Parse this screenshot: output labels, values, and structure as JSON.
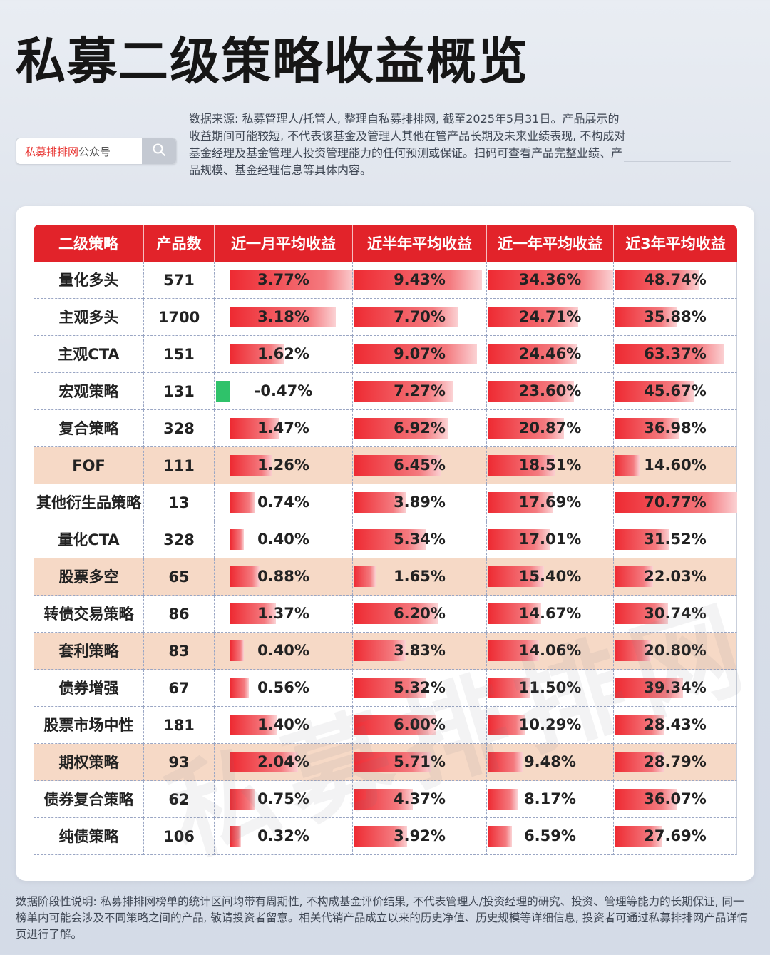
{
  "title": "私募二级策略收益概览",
  "search": {
    "brand": "私募排排网",
    "suffix": "公众号",
    "icon": "search-icon"
  },
  "source_note": "数据来源: 私募管理人/托管人, 整理自私募排排网, 截至2025年5月31日。产品展示的收益期间可能较短, 不代表该基金及管理人其他在管产品长期及未来业绩表现, 不构成对基金经理及基金管理人投资管理能力的任何预测或保证。扫码可查看产品完整业绩、产品规模、基金经理信息等具体内容。",
  "watermark": "私募排排网",
  "footnote": "数据阶段性说明: 私募排排网榜单的统计区间均带有周期性, 不构成基金评价结果, 不代表管理人/投资经理的研究、投资、管理等能力的长期保证, 同一榜单内可能会涉及不同策略之间的产品, 敬请投资者留意。相关代销产品成立以来的历史净值、历史规模等详细信息, 投资者可通过私募排排网产品详情页进行了解。",
  "colors": {
    "header": "#e2232a",
    "bar": "#ee2a32",
    "negative_bar": "#2fc26a",
    "highlight_row": "#f6d9c6"
  },
  "chart_data": {
    "type": "table",
    "columns": [
      "二级策略",
      "产品数",
      "近一月平均收益",
      "近半年平均收益",
      "近一年平均收益",
      "近3年平均收益"
    ],
    "bar_max": [
      3.77,
      9.43,
      34.36,
      70.77
    ],
    "rows": [
      {
        "name": "量化多头",
        "count": "571",
        "highlight": false,
        "values": [
          3.77,
          9.43,
          34.36,
          48.74
        ],
        "labels": [
          "3.77%",
          "9.43%",
          "34.36%",
          "48.74%"
        ]
      },
      {
        "name": "主观多头",
        "count": "1700",
        "highlight": false,
        "values": [
          3.18,
          7.7,
          24.71,
          35.88
        ],
        "labels": [
          "3.18%",
          "7.70%",
          "24.71%",
          "35.88%"
        ]
      },
      {
        "name": "主观CTA",
        "count": "151",
        "highlight": false,
        "values": [
          1.62,
          9.07,
          24.46,
          63.37
        ],
        "labels": [
          "1.62%",
          "9.07%",
          "24.46%",
          "63.37%"
        ]
      },
      {
        "name": "宏观策略",
        "count": "131",
        "highlight": false,
        "values": [
          -0.47,
          7.27,
          23.6,
          45.67
        ],
        "labels": [
          "-0.47%",
          "7.27%",
          "23.60%",
          "45.67%"
        ]
      },
      {
        "name": "复合策略",
        "count": "328",
        "highlight": false,
        "values": [
          1.47,
          6.92,
          20.87,
          36.98
        ],
        "labels": [
          "1.47%",
          "6.92%",
          "20.87%",
          "36.98%"
        ]
      },
      {
        "name": "FOF",
        "count": "111",
        "highlight": true,
        "values": [
          1.26,
          6.45,
          18.51,
          14.6
        ],
        "labels": [
          "1.26%",
          "6.45%",
          "18.51%",
          "14.60%"
        ]
      },
      {
        "name": "其他衍生品策略",
        "count": "13",
        "highlight": false,
        "values": [
          0.74,
          3.89,
          17.69,
          70.77
        ],
        "labels": [
          "0.74%",
          "3.89%",
          "17.69%",
          "70.77%"
        ]
      },
      {
        "name": "量化CTA",
        "count": "328",
        "highlight": false,
        "values": [
          0.4,
          5.34,
          17.01,
          31.52
        ],
        "labels": [
          "0.40%",
          "5.34%",
          "17.01%",
          "31.52%"
        ]
      },
      {
        "name": "股票多空",
        "count": "65",
        "highlight": true,
        "values": [
          0.88,
          1.65,
          15.4,
          22.03
        ],
        "labels": [
          "0.88%",
          "1.65%",
          "15.40%",
          "22.03%"
        ]
      },
      {
        "name": "转债交易策略",
        "count": "86",
        "highlight": false,
        "values": [
          1.37,
          6.2,
          14.67,
          30.74
        ],
        "labels": [
          "1.37%",
          "6.20%",
          "14.67%",
          "30.74%"
        ]
      },
      {
        "name": "套利策略",
        "count": "83",
        "highlight": true,
        "values": [
          0.4,
          3.83,
          14.06,
          20.8
        ],
        "labels": [
          "0.40%",
          "3.83%",
          "14.06%",
          "20.80%"
        ]
      },
      {
        "name": "债券增强",
        "count": "67",
        "highlight": false,
        "values": [
          0.56,
          5.32,
          11.5,
          39.34
        ],
        "labels": [
          "0.56%",
          "5.32%",
          "11.50%",
          "39.34%"
        ]
      },
      {
        "name": "股票市场中性",
        "count": "181",
        "highlight": false,
        "values": [
          1.4,
          6.0,
          10.29,
          28.43
        ],
        "labels": [
          "1.40%",
          "6.00%",
          "10.29%",
          "28.43%"
        ]
      },
      {
        "name": "期权策略",
        "count": "93",
        "highlight": true,
        "values": [
          2.04,
          5.71,
          9.48,
          28.79
        ],
        "labels": [
          "2.04%",
          "5.71%",
          "9.48%",
          "28.79%"
        ]
      },
      {
        "name": "债券复合策略",
        "count": "62",
        "highlight": false,
        "values": [
          0.75,
          4.37,
          8.17,
          36.07
        ],
        "labels": [
          "0.75%",
          "4.37%",
          "8.17%",
          "36.07%"
        ]
      },
      {
        "name": "纯债策略",
        "count": "106",
        "highlight": false,
        "values": [
          0.32,
          3.92,
          6.59,
          27.69
        ],
        "labels": [
          "0.32%",
          "3.92%",
          "6.59%",
          "27.69%"
        ]
      }
    ]
  }
}
